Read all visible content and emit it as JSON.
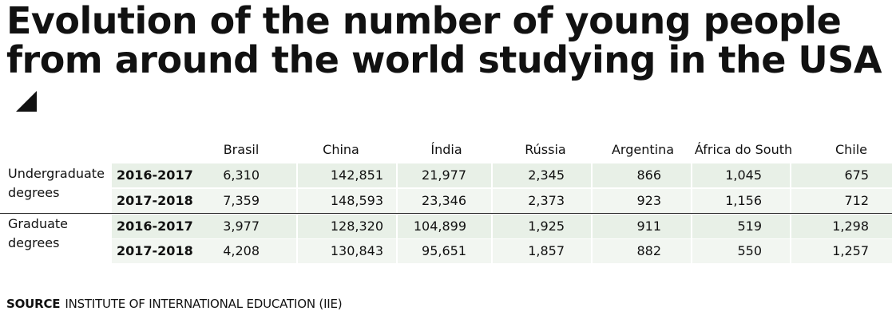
{
  "title": "Evolution of the number of young people from around the world studying in the USA",
  "source": {
    "label": "SOURCE",
    "text": "INSTITUTE OF INTERNATIONAL EDUCATION (IIE)"
  },
  "colors": {
    "band_a": "#e8f0e7",
    "band_b": "#f2f6f1",
    "text": "#111111"
  },
  "chart_data": {
    "type": "table",
    "columns": [
      "Brasil",
      "China",
      "Índia",
      "Rússia",
      "Argentina",
      "África do South",
      "Chile"
    ],
    "groups": [
      {
        "label": "Undergraduate degrees",
        "rows": [
          {
            "year": "2016-2017",
            "values": [
              "6,310",
              "142,851",
              "21,977",
              "2,345",
              "866",
              "1,045",
              "675"
            ]
          },
          {
            "year": "2017-2018",
            "values": [
              "7,359",
              "148,593",
              "23,346",
              "2,373",
              "923",
              "1,156",
              "712"
            ]
          }
        ]
      },
      {
        "label": "Graduate degrees",
        "rows": [
          {
            "year": "2016-2017",
            "values": [
              "3,977",
              "128,320",
              "104,899",
              "1,925",
              "911",
              "519",
              "1,298"
            ]
          },
          {
            "year": "2017-2018",
            "values": [
              "4,208",
              "130,843",
              "95,651",
              "1,857",
              "882",
              "550",
              "1,257"
            ]
          }
        ]
      }
    ]
  }
}
